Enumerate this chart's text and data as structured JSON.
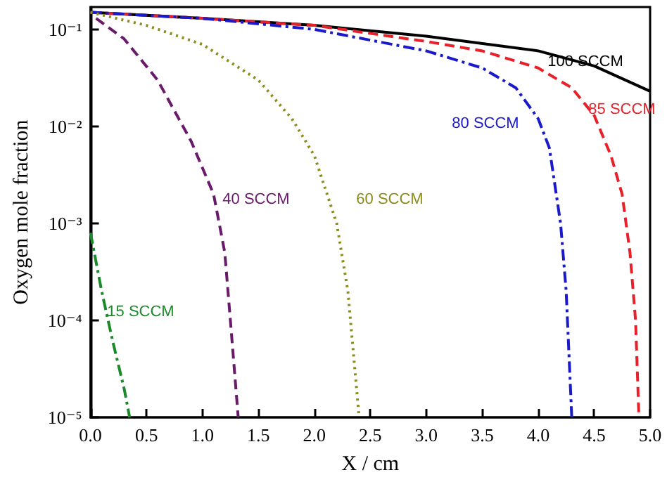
{
  "chart_data": {
    "type": "line",
    "xlabel": "X / cm",
    "ylabel": "Oxygen mole fraction",
    "log": "y",
    "grid": false,
    "legend": false,
    "marker": "none",
    "xlim": [
      0,
      5
    ],
    "xticks": [
      {
        "value": 0,
        "label": "0.0"
      },
      {
        "value": 0.5,
        "label": "0.5"
      },
      {
        "value": 1,
        "label": "1.0"
      },
      {
        "value": 1.5,
        "label": "1.5"
      },
      {
        "value": 2,
        "label": "2.0"
      },
      {
        "value": 2.5,
        "label": "2.5"
      },
      {
        "value": 3,
        "label": "3.0"
      },
      {
        "value": 3.5,
        "label": "3.5"
      },
      {
        "value": 4,
        "label": "4.0"
      },
      {
        "value": 4.5,
        "label": "4.5"
      },
      {
        "value": 5,
        "label": "5.0"
      }
    ],
    "ylim": [
      1e-05,
      0.17
    ],
    "yticks": [
      {
        "value": 1e-05,
        "label": "10⁻⁵"
      },
      {
        "value": 0.0001,
        "label": "10⁻⁴"
      },
      {
        "value": 0.001,
        "label": "10⁻³"
      },
      {
        "value": 0.01,
        "label": "10⁻²"
      },
      {
        "value": 0.1,
        "label": "10⁻¹"
      }
    ],
    "series": [
      {
        "name": "100 SCCM",
        "color": "#000000",
        "line_style": "solid",
        "x": [
          0,
          1,
          2,
          3,
          4,
          4.5,
          5
        ],
        "values": [
          0.15,
          0.13,
          0.11,
          0.085,
          0.06,
          0.042,
          0.023
        ]
      },
      {
        "name": "85 SCCM",
        "color": "#e8202a",
        "line_style": "dashed",
        "x": [
          0,
          1,
          2,
          3,
          3.5,
          4,
          4.3,
          4.5,
          4.65,
          4.75,
          4.82,
          4.87,
          4.9
        ],
        "values": [
          0.15,
          0.13,
          0.11,
          0.075,
          0.06,
          0.04,
          0.025,
          0.013,
          0.005,
          0.002,
          0.0005,
          0.0001,
          1e-05
        ]
      },
      {
        "name": "80 SCCM",
        "color": "#1a1acc",
        "line_style": "dashdot",
        "x": [
          0,
          1,
          2,
          3,
          3.5,
          3.8,
          4,
          4.1,
          4.2,
          4.25,
          4.3
        ],
        "values": [
          0.15,
          0.13,
          0.1,
          0.06,
          0.04,
          0.025,
          0.012,
          0.006,
          0.001,
          0.0002,
          1e-05
        ]
      },
      {
        "name": "60 SCCM",
        "color": "#8c8c1a",
        "line_style": "dotted",
        "x": [
          0,
          0.5,
          1,
          1.5,
          1.8,
          2,
          2.2,
          2.3,
          2.4
        ],
        "values": [
          0.15,
          0.11,
          0.07,
          0.03,
          0.012,
          0.005,
          0.001,
          0.0002,
          1e-05
        ]
      },
      {
        "name": "40 SCCM",
        "color": "#6a1a6a",
        "line_style": "dashed",
        "x": [
          0.05,
          0.3,
          0.6,
          0.9,
          1.1,
          1.2,
          1.25,
          1.32
        ],
        "values": [
          0.13,
          0.08,
          0.03,
          0.007,
          0.002,
          0.0005,
          0.0001,
          1e-05
        ]
      },
      {
        "name": "15 SCCM",
        "color": "#1a8a2a",
        "line_style": "dashdot",
        "x": [
          0,
          0.1,
          0.2,
          0.3,
          0.35
        ],
        "values": [
          0.0008,
          0.0002,
          6e-05,
          2e-05,
          1e-05
        ]
      }
    ]
  }
}
